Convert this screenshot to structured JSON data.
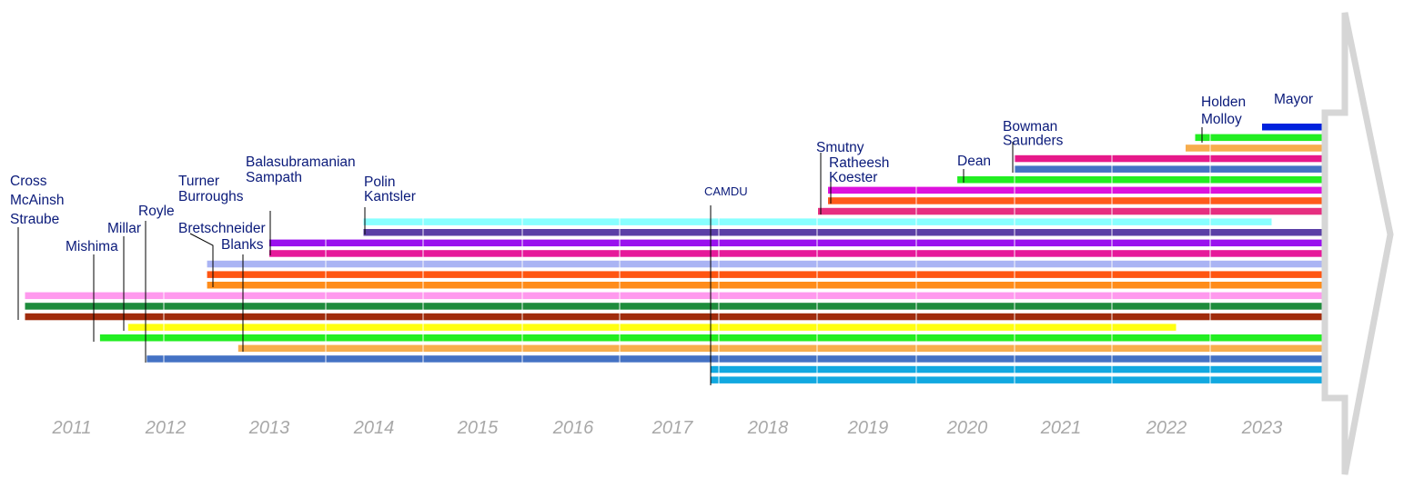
{
  "chart_data": {
    "type": "timeline",
    "title": "",
    "x_range": [
      2010.5,
      2023.7
    ],
    "years": [
      2011,
      2012,
      2013,
      2014,
      2015,
      2016,
      2017,
      2018,
      2019,
      2020,
      2021,
      2022,
      2023
    ],
    "bars": [
      {
        "color": "#0022dd",
        "start": 2023.0,
        "end": 2023.7
      },
      {
        "color": "#22ee22",
        "start": 2022.3,
        "end": 2023.7
      },
      {
        "color": "#f7ad4d",
        "start": 2022.2,
        "end": 2023.7
      },
      {
        "color": "#e6198a",
        "start": 2020.5,
        "end": 2023.7
      },
      {
        "color": "#4472c4",
        "start": 2020.5,
        "end": 2023.7
      },
      {
        "color": "#22ee22",
        "start": 2019.9,
        "end": 2023.7
      },
      {
        "color": "#dd11dd",
        "start": 2018.6,
        "end": 2023.7
      },
      {
        "color": "#ff5a1a",
        "start": 2018.6,
        "end": 2023.7
      },
      {
        "color": "#e62e80",
        "start": 2018.5,
        "end": 2023.7
      },
      {
        "color": "#88ffff",
        "start": 2013.9,
        "end": 2023.1
      },
      {
        "color": "#5b3fa6",
        "start": 2013.9,
        "end": 2023.7
      },
      {
        "color": "#9911ee",
        "start": 2013.0,
        "end": 2023.7
      },
      {
        "color": "#e6199a",
        "start": 2013.0,
        "end": 2023.7
      },
      {
        "color": "#aab4f4",
        "start": 2012.4,
        "end": 2023.7
      },
      {
        "color": "#ff5511",
        "start": 2012.4,
        "end": 2023.7
      },
      {
        "color": "#ff8c1a",
        "start": 2012.4,
        "end": 2023.7
      },
      {
        "color": "#ff99ee",
        "start": 2010.5,
        "end": 2023.7
      },
      {
        "color": "#1e8c3c",
        "start": 2010.5,
        "end": 2023.7
      },
      {
        "color": "#a02c0c",
        "start": 2010.5,
        "end": 2023.7
      },
      {
        "color": "#ffff11",
        "start": 2011.6,
        "end": 2022.1
      },
      {
        "color": "#22ee22",
        "start": 2011.3,
        "end": 2023.7
      },
      {
        "color": "#f7ad4d",
        "start": 2012.7,
        "end": 2023.7
      },
      {
        "color": "#4472c4",
        "start": 2011.8,
        "end": 2023.7
      },
      {
        "color": "#11a8e0",
        "start": 2017.4,
        "end": 2023.7
      },
      {
        "color": "#11a8e0",
        "start": 2017.4,
        "end": 2023.7
      }
    ],
    "labels": [
      {
        "lines": [
          "Cross",
          "McAinsh",
          "Straube"
        ],
        "year": 2010.5
      },
      {
        "lines": [
          "Mishima"
        ],
        "year": 2011.3
      },
      {
        "lines": [
          "Millar"
        ],
        "year": 2011.6
      },
      {
        "lines": [
          "Royle"
        ],
        "year": 2011.8
      },
      {
        "lines": [
          "Turner",
          "Burroughs"
        ],
        "year": 2012.4
      },
      {
        "lines": [
          "Bretschneider"
        ],
        "year": 2012.4
      },
      {
        "lines": [
          "Blanks"
        ],
        "year": 2012.7
      },
      {
        "lines": [
          "Balasubramanian",
          "Sampath"
        ],
        "year": 2013.0
      },
      {
        "lines": [
          "Polin",
          "Kantsler"
        ],
        "year": 2013.9
      },
      {
        "lines": [
          "CAMDU"
        ],
        "year": 2017.4
      },
      {
        "lines": [
          "Smutny"
        ],
        "year": 2018.5
      },
      {
        "lines": [
          "Ratheesh",
          "Koester"
        ],
        "year": 2018.6
      },
      {
        "lines": [
          "Dean"
        ],
        "year": 2019.9
      },
      {
        "lines": [
          "Bowman",
          "Saunders"
        ],
        "year": 2020.5
      },
      {
        "lines": [
          "Holden",
          "Molloy"
        ],
        "year": 2022.3
      },
      {
        "lines": [
          "Mayor"
        ],
        "year": 2023.0
      }
    ]
  }
}
